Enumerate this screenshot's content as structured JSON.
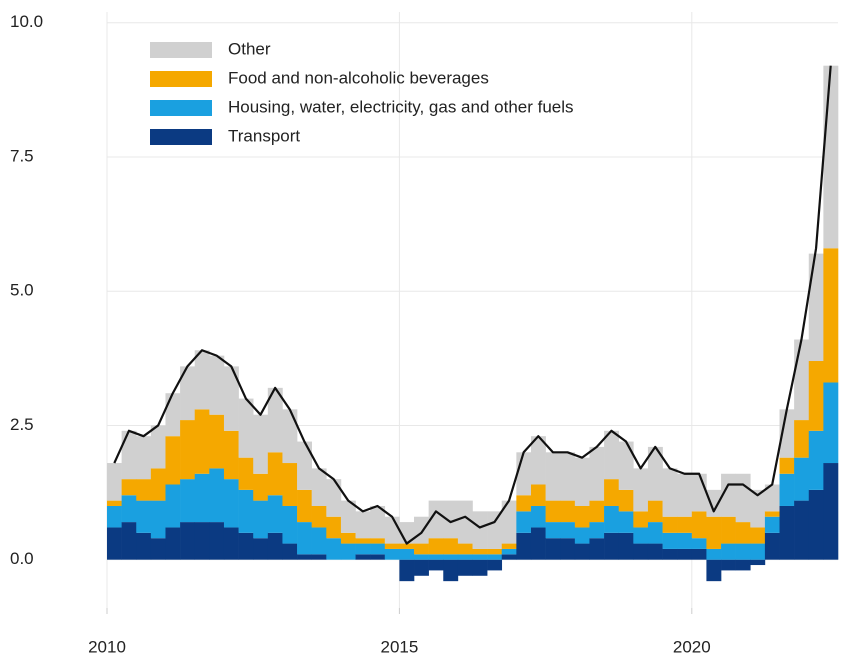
{
  "chart_data": {
    "type": "stacked_bar_line",
    "x": [
      2010,
      2010.25,
      2010.5,
      2010.75,
      2011,
      2011.25,
      2011.5,
      2011.75,
      2012,
      2012.25,
      2012.5,
      2012.75,
      2013,
      2013.25,
      2013.5,
      2013.75,
      2014,
      2014.25,
      2014.5,
      2014.75,
      2015,
      2015.25,
      2015.5,
      2015.75,
      2016,
      2016.25,
      2016.5,
      2016.75,
      2017,
      2017.25,
      2017.5,
      2017.75,
      2018,
      2018.25,
      2018.5,
      2018.75,
      2019,
      2019.25,
      2019.5,
      2019.75,
      2020,
      2020.25,
      2020.5,
      2020.75,
      2021,
      2021.25,
      2021.5,
      2021.75,
      2022,
      2022.25
    ],
    "series": [
      {
        "name": "Transport",
        "color": "#0b3a82",
        "values": [
          0.6,
          0.7,
          0.5,
          0.4,
          0.6,
          0.7,
          0.7,
          0.7,
          0.6,
          0.5,
          0.4,
          0.5,
          0.3,
          0.1,
          0.1,
          0.0,
          0.0,
          0.1,
          0.1,
          0.0,
          -0.4,
          -0.3,
          -0.2,
          -0.4,
          -0.3,
          -0.3,
          -0.2,
          0.1,
          0.5,
          0.6,
          0.4,
          0.4,
          0.3,
          0.4,
          0.5,
          0.5,
          0.3,
          0.3,
          0.2,
          0.2,
          0.2,
          -0.4,
          -0.2,
          -0.2,
          -0.1,
          0.5,
          1.0,
          1.1,
          1.3,
          1.8
        ]
      },
      {
        "name": "Housing, water, electricity, gas and other fuels",
        "color": "#1aa0e0",
        "values": [
          0.4,
          0.5,
          0.6,
          0.7,
          0.8,
          0.8,
          0.9,
          1.0,
          0.9,
          0.8,
          0.7,
          0.7,
          0.7,
          0.6,
          0.5,
          0.4,
          0.3,
          0.2,
          0.2,
          0.2,
          0.2,
          0.1,
          0.1,
          0.1,
          0.1,
          0.1,
          0.1,
          0.1,
          0.4,
          0.4,
          0.3,
          0.3,
          0.3,
          0.3,
          0.5,
          0.4,
          0.3,
          0.4,
          0.3,
          0.3,
          0.2,
          0.2,
          0.3,
          0.3,
          0.3,
          0.3,
          0.6,
          0.8,
          1.1,
          1.5
        ]
      },
      {
        "name": "Food and non-alcoholic beverages",
        "color": "#f5a800",
        "values": [
          0.1,
          0.3,
          0.4,
          0.6,
          0.9,
          1.1,
          1.2,
          1.0,
          0.9,
          0.6,
          0.5,
          0.8,
          0.8,
          0.6,
          0.4,
          0.4,
          0.2,
          0.1,
          0.1,
          0.1,
          0.1,
          0.2,
          0.3,
          0.3,
          0.2,
          0.1,
          0.1,
          0.1,
          0.3,
          0.4,
          0.4,
          0.4,
          0.4,
          0.4,
          0.5,
          0.4,
          0.3,
          0.4,
          0.3,
          0.3,
          0.5,
          0.6,
          0.5,
          0.4,
          0.3,
          0.1,
          0.3,
          0.7,
          1.3,
          2.5
        ]
      },
      {
        "name": "Other",
        "color": "#d0d0d0",
        "values": [
          0.7,
          0.9,
          0.8,
          0.8,
          0.8,
          1.0,
          1.1,
          1.1,
          1.2,
          1.1,
          1.1,
          1.2,
          1.0,
          0.9,
          0.7,
          0.7,
          0.6,
          0.5,
          0.6,
          0.5,
          0.4,
          0.5,
          0.7,
          0.7,
          0.8,
          0.7,
          0.7,
          0.8,
          0.8,
          0.9,
          0.9,
          0.9,
          0.9,
          1.0,
          0.9,
          0.9,
          0.8,
          1.0,
          0.9,
          0.8,
          0.7,
          0.5,
          0.8,
          0.9,
          0.7,
          0.5,
          0.9,
          1.5,
          2.0,
          3.4
        ]
      }
    ],
    "line": {
      "color": "#111111",
      "values": [
        1.8,
        2.4,
        2.3,
        2.5,
        3.1,
        3.6,
        3.9,
        3.8,
        3.6,
        3.0,
        2.7,
        3.2,
        2.8,
        2.2,
        1.7,
        1.5,
        1.1,
        0.9,
        1.0,
        0.8,
        0.3,
        0.5,
        0.9,
        0.7,
        0.8,
        0.6,
        0.7,
        1.1,
        2.0,
        2.3,
        2.0,
        2.0,
        1.9,
        2.1,
        2.4,
        2.2,
        1.7,
        2.1,
        1.7,
        1.6,
        1.6,
        0.9,
        1.4,
        1.4,
        1.2,
        1.4,
        2.8,
        4.1,
        5.8,
        9.2
      ]
    },
    "xlim": [
      2010,
      2022.5
    ],
    "xticks": [
      2010,
      2015,
      2020
    ],
    "ylim": [
      -0.9,
      10.2
    ],
    "yticks": [
      {
        "value": 0,
        "label": "0.0"
      },
      2.5,
      {
        "value": 5,
        "label": "5.0"
      },
      7.5,
      {
        "value": 10,
        "label": "10.0"
      }
    ],
    "grid": true
  }
}
